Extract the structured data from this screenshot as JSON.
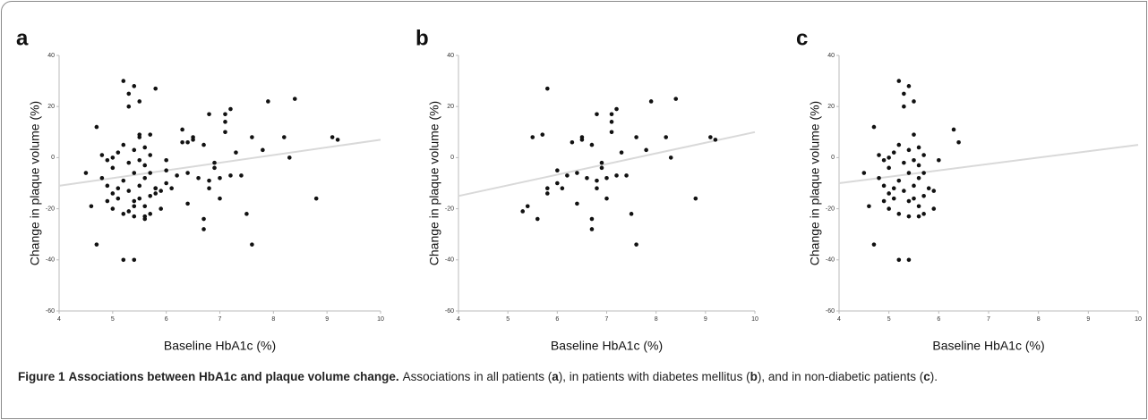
{
  "chart_data": [
    {
      "type": "scatter",
      "title": "a",
      "xlabel": "Baseline HbA1c (%)",
      "ylabel": "Change in plaque volume (%)",
      "xlim": [
        4,
        10
      ],
      "ylim": [
        -60,
        40
      ],
      "xticks": [
        4,
        5,
        6,
        7,
        8,
        9,
        10
      ],
      "yticks": [
        -60,
        -40,
        -20,
        0,
        20,
        40
      ],
      "color": "#111111",
      "trend_color": "#d9d9d9",
      "x": [
        5.3,
        5.4,
        5.5,
        5.6,
        5.7,
        5.8,
        5.8,
        5.8,
        6.0,
        6.0,
        6.1,
        6.2,
        6.3,
        6.4,
        6.4,
        6.5,
        6.5,
        6.6,
        6.7,
        6.7,
        6.7,
        6.8,
        6.8,
        6.8,
        6.9,
        6.9,
        7.0,
        7.0,
        7.1,
        7.1,
        7.1,
        7.2,
        7.2,
        7.3,
        7.4,
        7.5,
        7.6,
        7.6,
        7.8,
        7.9,
        8.2,
        8.3,
        8.4,
        8.8,
        9.1,
        9.2,
        4.5,
        4.6,
        4.7,
        4.7,
        4.8,
        4.8,
        4.9,
        4.9,
        4.9,
        5.0,
        5.0,
        5.0,
        5.0,
        5.1,
        5.1,
        5.1,
        5.2,
        5.2,
        5.2,
        5.2,
        5.2,
        5.3,
        5.3,
        5.3,
        5.3,
        5.4,
        5.4,
        5.4,
        5.4,
        5.4,
        5.4,
        5.5,
        5.5,
        5.5,
        5.5,
        5.5,
        5.6,
        5.6,
        5.6,
        5.6,
        5.6,
        5.7,
        5.7,
        5.7,
        5.7,
        5.8,
        5.9,
        5.9,
        6.0,
        6.3,
        6.4
      ],
      "y": [
        -21,
        -19,
        8,
        -24,
        9,
        27,
        -12,
        -14,
        -5,
        -10,
        -12,
        -7,
        6,
        -18,
        -6,
        7,
        8,
        -8,
        5,
        -24,
        -28,
        17,
        -9,
        -12,
        -4,
        -2,
        -8,
        -16,
        14,
        17,
        10,
        19,
        -7,
        2,
        -7,
        -22,
        8,
        -34,
        3,
        22,
        8,
        0,
        23,
        -16,
        8,
        7,
        -6,
        -19,
        -34,
        12,
        -8,
        1,
        -1,
        -17,
        -11,
        -20,
        -14,
        0,
        -4,
        -12,
        2,
        -16,
        30,
        -40,
        -22,
        5,
        -9,
        -13,
        -2,
        25,
        20,
        28,
        -40,
        -23,
        -6,
        3,
        -17,
        -1,
        9,
        22,
        -16,
        -11,
        -23,
        -19,
        4,
        -3,
        -8,
        -22,
        -15,
        -6,
        1,
        -12,
        -20,
        -13,
        -1,
        11,
        6
      ],
      "trend_line": {
        "x": [
          4,
          10
        ],
        "y": [
          -11,
          7
        ]
      }
    },
    {
      "type": "scatter",
      "title": "b",
      "xlabel": "Baseline HbA1c (%)",
      "ylabel": "Change in plaque volume (%)",
      "xlim": [
        4,
        10
      ],
      "ylim": [
        -60,
        40
      ],
      "xticks": [
        4,
        5,
        6,
        7,
        8,
        9,
        10
      ],
      "yticks": [
        -60,
        -40,
        -20,
        0,
        20,
        40
      ],
      "color": "#111111",
      "trend_color": "#d9d9d9",
      "x": [
        5.3,
        5.4,
        5.5,
        5.6,
        5.7,
        5.8,
        5.8,
        5.8,
        6.0,
        6.0,
        6.1,
        6.2,
        6.3,
        6.4,
        6.4,
        6.5,
        6.5,
        6.6,
        6.7,
        6.7,
        6.7,
        6.8,
        6.8,
        6.8,
        6.9,
        6.9,
        7.0,
        7.0,
        7.1,
        7.1,
        7.1,
        7.2,
        7.2,
        7.3,
        7.4,
        7.5,
        7.6,
        7.6,
        7.8,
        7.9,
        8.2,
        8.3,
        8.4,
        8.8,
        9.1,
        9.2
      ],
      "y": [
        -21,
        -19,
        8,
        -24,
        9,
        27,
        -12,
        -14,
        -5,
        -10,
        -12,
        -7,
        6,
        -18,
        -6,
        7,
        8,
        -8,
        5,
        -24,
        -28,
        17,
        -9,
        -12,
        -4,
        -2,
        -8,
        -16,
        14,
        17,
        10,
        19,
        -7,
        2,
        -7,
        -22,
        8,
        -34,
        3,
        22,
        8,
        0,
        23,
        -16,
        8,
        7
      ],
      "trend_line": {
        "x": [
          4,
          10
        ],
        "y": [
          -15,
          10
        ]
      }
    },
    {
      "type": "scatter",
      "title": "c",
      "xlabel": "Baseline HbA1c (%)",
      "ylabel": "Change in plaque volume (%)",
      "xlim": [
        4,
        10
      ],
      "ylim": [
        -60,
        40
      ],
      "xticks": [
        4,
        5,
        6,
        7,
        8,
        9,
        10
      ],
      "yticks": [
        -60,
        -40,
        -20,
        0,
        20,
        40
      ],
      "color": "#111111",
      "trend_color": "#d9d9d9",
      "x": [
        4.5,
        4.6,
        4.7,
        4.7,
        4.8,
        4.8,
        4.9,
        4.9,
        4.9,
        5.0,
        5.0,
        5.0,
        5.0,
        5.1,
        5.1,
        5.1,
        5.2,
        5.2,
        5.2,
        5.2,
        5.2,
        5.3,
        5.3,
        5.3,
        5.3,
        5.4,
        5.4,
        5.4,
        5.4,
        5.4,
        5.4,
        5.5,
        5.5,
        5.5,
        5.5,
        5.5,
        5.6,
        5.6,
        5.6,
        5.6,
        5.6,
        5.7,
        5.7,
        5.7,
        5.7,
        5.8,
        5.9,
        5.9,
        6.0,
        6.3,
        6.4
      ],
      "y": [
        -6,
        -19,
        -34,
        12,
        -8,
        1,
        -1,
        -17,
        -11,
        -20,
        -14,
        0,
        -4,
        -12,
        2,
        -16,
        30,
        -40,
        -22,
        5,
        -9,
        -13,
        -2,
        25,
        20,
        28,
        -40,
        -23,
        -6,
        3,
        -17,
        -1,
        9,
        22,
        -16,
        -11,
        -23,
        -19,
        4,
        -3,
        -8,
        -22,
        -15,
        -6,
        1,
        -12,
        -20,
        -13,
        -1,
        11,
        6
      ],
      "trend_line": {
        "x": [
          4,
          10
        ],
        "y": [
          -10,
          5
        ]
      }
    }
  ],
  "caption": {
    "label": "Figure 1",
    "title": "Associations between HbA1c and plaque volume change.",
    "parts": [
      "Associations in all patients (",
      "a",
      "), in patients with diabetes mellitus (",
      "b",
      "), and in non-diabetic patients (",
      "c",
      ")."
    ]
  }
}
